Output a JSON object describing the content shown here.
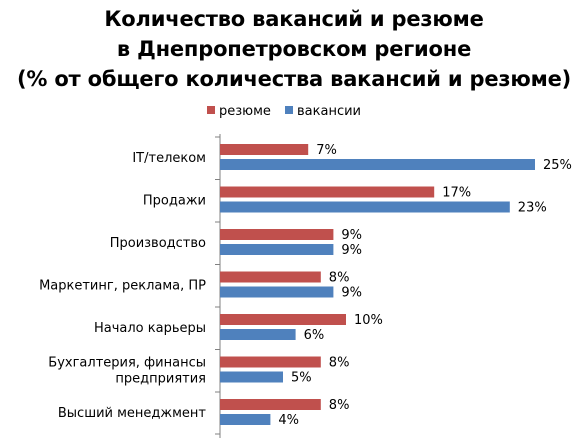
{
  "chart_data": {
    "type": "bar",
    "orientation": "horizontal",
    "title_lines": [
      "Количество вакансий и резюме",
      "в Днепропетровском регионе",
      "(% от общего количества вакансий и резюме)"
    ],
    "value_suffix": "%",
    "categories": [
      [
        "IT/телеком"
      ],
      [
        "Продажи"
      ],
      [
        "Производство"
      ],
      [
        "Маркетинг, реклама, ПР"
      ],
      [
        "Начало карьеры"
      ],
      [
        "Бухгалтерия, финансы",
        "предприятия"
      ],
      [
        "Высший менеджмент"
      ]
    ],
    "series": [
      {
        "name": "резюме",
        "color": "#C0504D",
        "values": [
          7,
          17,
          9,
          8,
          10,
          8,
          8
        ]
      },
      {
        "name": "вакансии",
        "color": "#4F81BD",
        "values": [
          25,
          23,
          9,
          9,
          6,
          5,
          4
        ]
      }
    ],
    "legend_position": "top",
    "xlim": [
      0,
      26
    ],
    "grid": false
  }
}
